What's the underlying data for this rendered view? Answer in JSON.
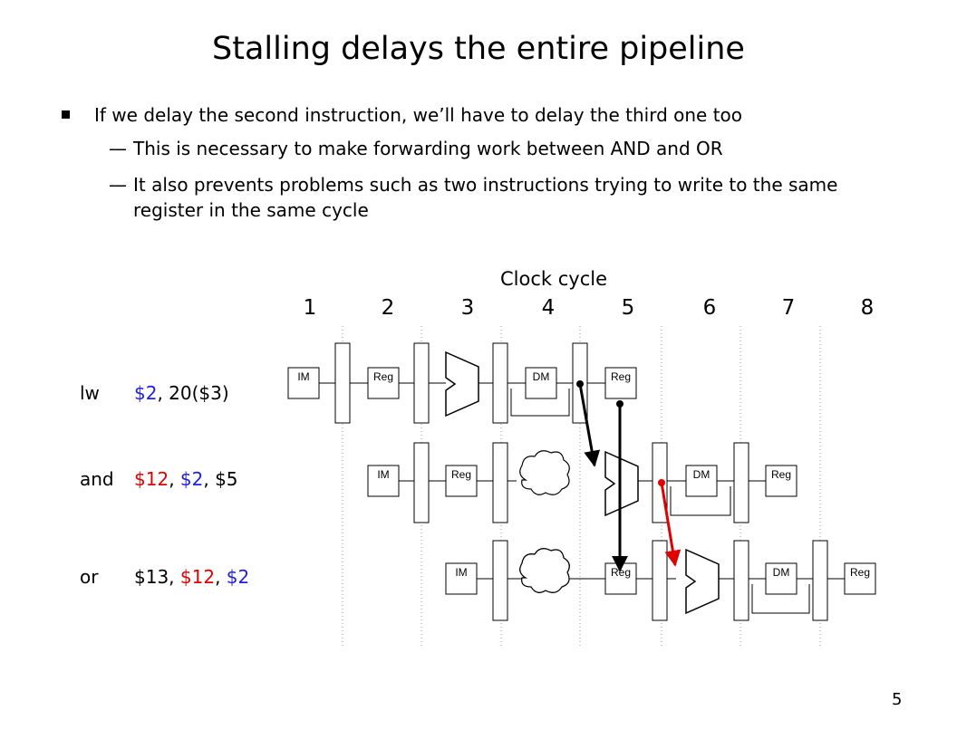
{
  "slide": {
    "title": "Stalling delays the entire pipeline",
    "page_number": "5"
  },
  "bullets": {
    "main": "If we delay the second instruction, we’ll have to delay the third one too",
    "dash": "—",
    "subs": [
      "This is necessary to make forwarding work between AND and OR",
      "It also prevents problems such as two instructions trying to write to the same register in the same cycle"
    ]
  },
  "diagram": {
    "clock_label": "Clock cycle",
    "cycles": [
      "1",
      "2",
      "3",
      "4",
      "5",
      "6",
      "7",
      "8"
    ],
    "stage_labels": {
      "im": "IM",
      "reg": "Reg",
      "dm": "DM"
    },
    "instructions": [
      {
        "op": "lw",
        "args": [
          {
            "t": "$2",
            "c": "blue"
          },
          {
            "t": ", 20($3)",
            "c": ""
          }
        ]
      },
      {
        "op": "and",
        "args": [
          {
            "t": "$12",
            "c": "red"
          },
          {
            "t": ", ",
            "c": ""
          },
          {
            "t": "$2",
            "c": "blue"
          },
          {
            "t": ", $5",
            "c": ""
          }
        ]
      },
      {
        "op": "or",
        "args": [
          {
            "t": "$13, ",
            "c": ""
          },
          {
            "t": "$12",
            "c": "red"
          },
          {
            "t": ", ",
            "c": ""
          },
          {
            "t": "$2",
            "c": "blue"
          }
        ]
      }
    ],
    "colors": {
      "forward_lw": "#000000",
      "forward_and": "#e00000",
      "grid": "#999999"
    }
  }
}
